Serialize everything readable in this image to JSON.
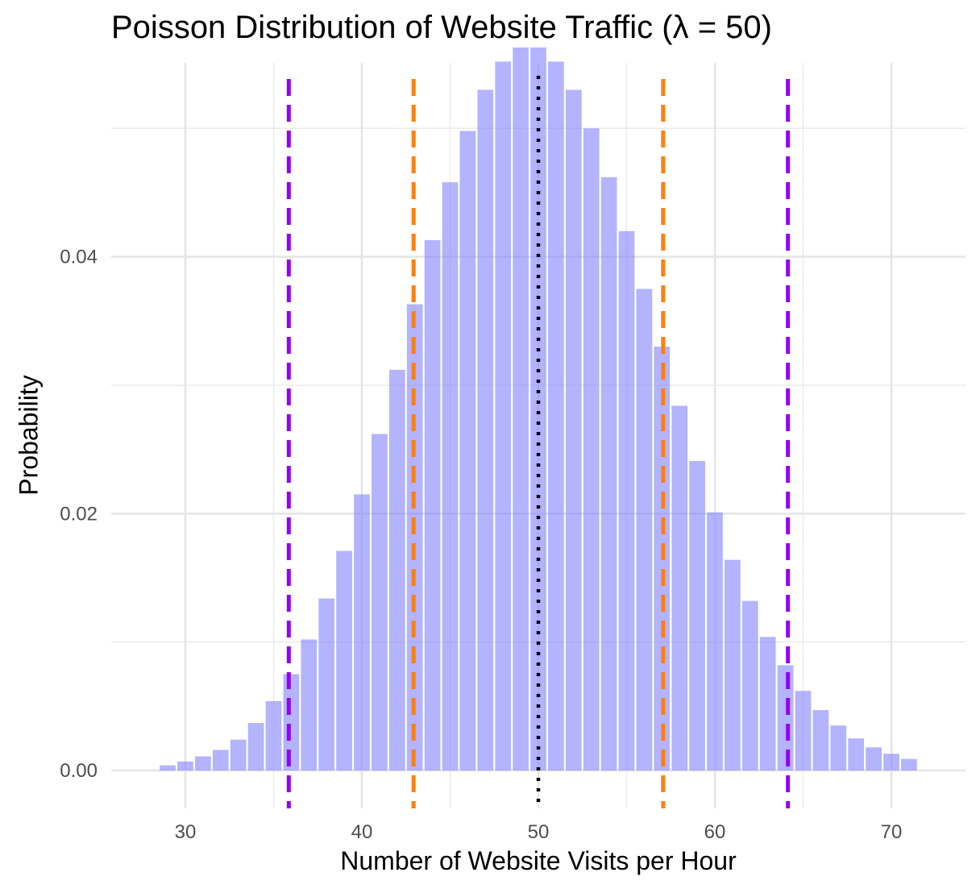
{
  "chart_data": {
    "type": "bar",
    "title": "Poisson Distribution of Website Traffic (λ = 50)",
    "xlabel": "Number of Website Visits per Hour",
    "ylabel": "Probability",
    "xlim": [
      25.8,
      74.2
    ],
    "ylim": [
      -0.00295,
      0.0551
    ],
    "x_ticks": [
      30,
      40,
      50,
      60,
      70
    ],
    "x_tick_labels": [
      "30",
      "40",
      "50",
      "60",
      "70"
    ],
    "y_ticks": [
      0.0,
      0.02,
      0.04
    ],
    "y_tick_labels": [
      "0.00",
      "0.02",
      "0.04"
    ],
    "grid": true,
    "bar_color": "#8080ff",
    "bar_opacity": 0.6,
    "x": [
      29,
      30,
      31,
      32,
      33,
      34,
      35,
      36,
      37,
      38,
      39,
      40,
      41,
      42,
      43,
      44,
      45,
      46,
      47,
      48,
      49,
      50,
      51,
      52,
      53,
      54,
      55,
      56,
      57,
      58,
      59,
      60,
      61,
      62,
      63,
      64,
      65,
      66,
      67,
      68,
      69,
      70,
      71
    ],
    "values": [
      0.0004,
      0.0007,
      0.0011,
      0.0016,
      0.0024,
      0.0037,
      0.0054,
      0.0075,
      0.0102,
      0.0134,
      0.0171,
      0.0215,
      0.0262,
      0.0312,
      0.0363,
      0.0413,
      0.0458,
      0.0498,
      0.053,
      0.0552,
      0.0563,
      0.0563,
      0.0552,
      0.053,
      0.05,
      0.0462,
      0.042,
      0.0375,
      0.033,
      0.0284,
      0.0241,
      0.0201,
      0.0164,
      0.0132,
      0.0104,
      0.0082,
      0.0062,
      0.0047,
      0.0035,
      0.0025,
      0.0018,
      0.0013,
      0.0009
    ],
    "reference_lines": [
      {
        "x": 50,
        "style": "dotted",
        "color": "#000000"
      },
      {
        "x": 42.93,
        "style": "dashed",
        "color": "#ff7f0e"
      },
      {
        "x": 57.07,
        "style": "dashed",
        "color": "#ff7f0e"
      },
      {
        "x": 35.86,
        "style": "dashed",
        "color": "#9400f0"
      },
      {
        "x": 64.14,
        "style": "dashed",
        "color": "#9400f0"
      }
    ]
  }
}
